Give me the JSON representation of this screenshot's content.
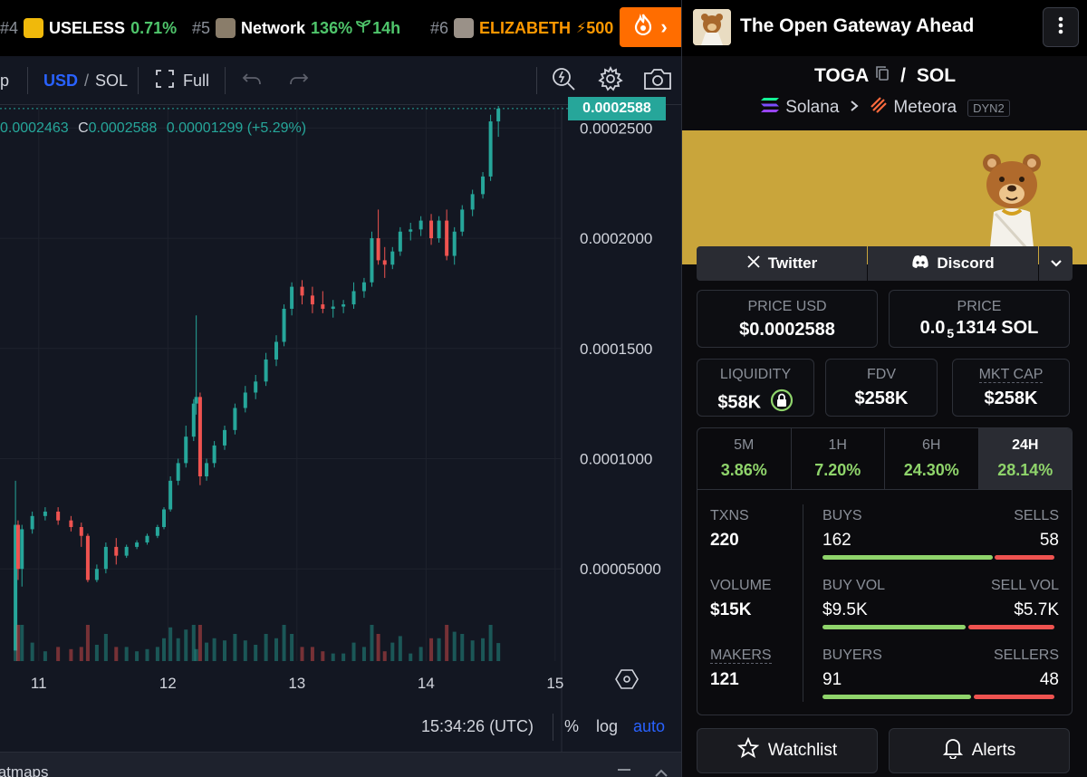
{
  "ticker": {
    "items": [
      {
        "rank": "#4",
        "name": "USELESS",
        "change": "0.71%",
        "age": "",
        "avatar_color": "#f0b90b"
      },
      {
        "rank": "#5",
        "name": "Network",
        "change": "136%",
        "age": "14h",
        "avatar_color": "#8a7d6a"
      },
      {
        "rank": "#6",
        "name": "ELIZABETH",
        "change": "",
        "age": "500",
        "avatar_color": "#9a9188"
      }
    ],
    "fire_button_icon": "flame-icon",
    "fire_arrow": "›"
  },
  "toolbar": {
    "interval_partial": "p",
    "currency_usd": "USD",
    "currency_sep": "/",
    "currency_sol": "SOL",
    "full_label": "Full"
  },
  "chart": {
    "legend": {
      "open_partial": "0.0002463",
      "close_label": "C",
      "close_value": "0.0002588",
      "change": "0.00001299 (+5.29%)"
    },
    "current_price_tag": "0.0002588",
    "time_readout": "15:34:26 (UTC)",
    "percent_label": "%",
    "log_label": "log",
    "auto_label": "auto",
    "heatmaps_label": "Heatmaps"
  },
  "chart_data": {
    "type": "candlestick",
    "x_tick_labels": [
      "11",
      "12",
      "13",
      "14",
      "15"
    ],
    "y_tick_labels": [
      "0.0002500",
      "0.0002000",
      "0.0001500",
      "0.0001000",
      "0.00005000"
    ],
    "y_ticks": [
      0.00025,
      0.0002,
      0.00015,
      0.0001,
      5e-05
    ],
    "ylim": [
      8.2e-06,
      0.00026
    ],
    "xlim": [
      10.7,
      15.05
    ],
    "last_price": 0.0002588,
    "up_color": "#26a69a",
    "down_color": "#ef5350",
    "candles": [
      {
        "t": 10.82,
        "o": 1.3e-05,
        "h": 9e-05,
        "l": 1.3e-05,
        "c": 7e-05
      },
      {
        "t": 10.84,
        "o": 7e-05,
        "h": 7.2e-05,
        "l": 4.5e-05,
        "c": 5e-05
      },
      {
        "t": 10.87,
        "o": 5e-05,
        "h": 7e-05,
        "l": 4.2e-05,
        "c": 6.8e-05
      },
      {
        "t": 10.95,
        "o": 6.8e-05,
        "h": 7.6e-05,
        "l": 6.6e-05,
        "c": 7.4e-05
      },
      {
        "t": 11.05,
        "o": 7.4e-05,
        "h": 7.8e-05,
        "l": 7.2e-05,
        "c": 7.6e-05
      },
      {
        "t": 11.15,
        "o": 7.6e-05,
        "h": 7.8e-05,
        "l": 7e-05,
        "c": 7.2e-05
      },
      {
        "t": 11.25,
        "o": 7.2e-05,
        "h": 7.4e-05,
        "l": 6.7e-05,
        "c": 6.9e-05
      },
      {
        "t": 11.33,
        "o": 6.9e-05,
        "h": 7.1e-05,
        "l": 6e-05,
        "c": 6.5e-05
      },
      {
        "t": 11.38,
        "o": 6.5e-05,
        "h": 6.6e-05,
        "l": 4.4e-05,
        "c": 4.5e-05
      },
      {
        "t": 11.45,
        "o": 4.5e-05,
        "h": 5.2e-05,
        "l": 4.4e-05,
        "c": 5e-05
      },
      {
        "t": 11.52,
        "o": 5e-05,
        "h": 6.2e-05,
        "l": 4.8e-05,
        "c": 6e-05
      },
      {
        "t": 11.6,
        "o": 6e-05,
        "h": 6.4e-05,
        "l": 5.2e-05,
        "c": 5.6e-05
      },
      {
        "t": 11.68,
        "o": 5.6e-05,
        "h": 6.1e-05,
        "l": 5.5e-05,
        "c": 6e-05
      },
      {
        "t": 11.76,
        "o": 6e-05,
        "h": 6.3e-05,
        "l": 5.9e-05,
        "c": 6.2e-05
      },
      {
        "t": 11.84,
        "o": 6.2e-05,
        "h": 6.6e-05,
        "l": 6.1e-05,
        "c": 6.5e-05
      },
      {
        "t": 11.92,
        "o": 6.5e-05,
        "h": 7e-05,
        "l": 6.4e-05,
        "c": 6.9e-05
      },
      {
        "t": 11.97,
        "o": 6.9e-05,
        "h": 7.8e-05,
        "l": 6.8e-05,
        "c": 7.7e-05
      },
      {
        "t": 12.02,
        "o": 7.7e-05,
        "h": 9.2e-05,
        "l": 7.6e-05,
        "c": 9e-05
      },
      {
        "t": 12.08,
        "o": 9e-05,
        "h": 0.0001,
        "l": 8.8e-05,
        "c": 9.8e-05
      },
      {
        "t": 12.14,
        "o": 9.8e-05,
        "h": 0.000115,
        "l": 9.6e-05,
        "c": 0.00011
      },
      {
        "t": 12.2,
        "o": 0.00011,
        "h": 0.000127,
        "l": 0.000108,
        "c": 0.000125
      },
      {
        "t": 12.22,
        "o": 0.000125,
        "h": 0.000165,
        "l": 0.00012,
        "c": 0.000128
      },
      {
        "t": 12.25,
        "o": 0.000128,
        "h": 0.00013,
        "l": 8.8e-05,
        "c": 9.2e-05
      },
      {
        "t": 12.3,
        "o": 9.2e-05,
        "h": 0.0001,
        "l": 9e-05,
        "c": 9.8e-05
      },
      {
        "t": 12.36,
        "o": 9.8e-05,
        "h": 0.000108,
        "l": 9.6e-05,
        "c": 0.000106
      },
      {
        "t": 12.44,
        "o": 0.000106,
        "h": 0.000115,
        "l": 0.000104,
        "c": 0.000113
      },
      {
        "t": 12.52,
        "o": 0.000113,
        "h": 0.000125,
        "l": 0.000111,
        "c": 0.000123
      },
      {
        "t": 12.6,
        "o": 0.000123,
        "h": 0.000133,
        "l": 0.000121,
        "c": 0.00013
      },
      {
        "t": 12.68,
        "o": 0.00013,
        "h": 0.000138,
        "l": 0.000127,
        "c": 0.000135
      },
      {
        "t": 12.76,
        "o": 0.000135,
        "h": 0.000148,
        "l": 0.000133,
        "c": 0.000145
      },
      {
        "t": 12.84,
        "o": 0.000145,
        "h": 0.000156,
        "l": 0.000142,
        "c": 0.000153
      },
      {
        "t": 12.9,
        "o": 0.000153,
        "h": 0.00017,
        "l": 0.000151,
        "c": 0.000168
      },
      {
        "t": 12.96,
        "o": 0.000168,
        "h": 0.00018,
        "l": 0.000165,
        "c": 0.000178
      },
      {
        "t": 13.04,
        "o": 0.000178,
        "h": 0.000181,
        "l": 0.00017,
        "c": 0.000174
      },
      {
        "t": 13.12,
        "o": 0.000174,
        "h": 0.000178,
        "l": 0.000166,
        "c": 0.00017
      },
      {
        "t": 13.2,
        "o": 0.00017,
        "h": 0.000176,
        "l": 0.000166,
        "c": 0.000168
      },
      {
        "t": 13.28,
        "o": 0.000168,
        "h": 0.000172,
        "l": 0.000164,
        "c": 0.000169
      },
      {
        "t": 13.36,
        "o": 0.000169,
        "h": 0.000172,
        "l": 0.000166,
        "c": 0.00017
      },
      {
        "t": 13.44,
        "o": 0.00017,
        "h": 0.00018,
        "l": 0.000168,
        "c": 0.000176
      },
      {
        "t": 13.52,
        "o": 0.000176,
        "h": 0.000182,
        "l": 0.000173,
        "c": 0.00018
      },
      {
        "t": 13.58,
        "o": 0.00018,
        "h": 0.000203,
        "l": 0.000178,
        "c": 0.0002
      },
      {
        "t": 13.63,
        "o": 0.0002,
        "h": 0.000213,
        "l": 0.000188,
        "c": 0.00019
      },
      {
        "t": 13.68,
        "o": 0.00019,
        "h": 0.000196,
        "l": 0.000182,
        "c": 0.000188
      },
      {
        "t": 13.74,
        "o": 0.000188,
        "h": 0.000196,
        "l": 0.000186,
        "c": 0.000194
      },
      {
        "t": 13.8,
        "o": 0.000194,
        "h": 0.000205,
        "l": 0.000192,
        "c": 0.000203
      },
      {
        "t": 13.88,
        "o": 0.000203,
        "h": 0.000207,
        "l": 0.000199,
        "c": 0.000204
      },
      {
        "t": 13.96,
        "o": 0.000204,
        "h": 0.00021,
        "l": 0.000201,
        "c": 0.000208
      },
      {
        "t": 14.04,
        "o": 0.000208,
        "h": 0.000211,
        "l": 0.000197,
        "c": 0.0002
      },
      {
        "t": 14.1,
        "o": 0.0002,
        "h": 0.00021,
        "l": 0.000198,
        "c": 0.000208
      },
      {
        "t": 14.16,
        "o": 0.000208,
        "h": 0.000213,
        "l": 0.00019,
        "c": 0.000192
      },
      {
        "t": 14.22,
        "o": 0.000192,
        "h": 0.000205,
        "l": 0.000188,
        "c": 0.000203
      },
      {
        "t": 14.28,
        "o": 0.000203,
        "h": 0.000215,
        "l": 0.000201,
        "c": 0.000213
      },
      {
        "t": 14.36,
        "o": 0.000213,
        "h": 0.000222,
        "l": 0.00021,
        "c": 0.00022
      },
      {
        "t": 14.44,
        "o": 0.00022,
        "h": 0.00023,
        "l": 0.000218,
        "c": 0.000228
      },
      {
        "t": 14.5,
        "o": 0.000228,
        "h": 0.000256,
        "l": 0.000226,
        "c": 0.000253
      },
      {
        "t": 14.56,
        "o": 0.000253,
        "h": 0.00026,
        "l": 0.000246,
        "c": 0.0002588
      }
    ]
  },
  "panel": {
    "token_name": "The Open Gateway Ahead",
    "pair_base": "TOGA",
    "pair_sep": "/",
    "pair_quote": "SOL",
    "chain": "Solana",
    "dex": "Meteora",
    "dex_tag": "DYN2",
    "socials": {
      "twitter": "Twitter",
      "discord": "Discord"
    },
    "price_usd": {
      "label": "PRICE USD",
      "value": "$0.0002588"
    },
    "price_native": {
      "label": "PRICE",
      "prefix": "0.0",
      "sub": "5",
      "value": "1314 SOL"
    },
    "liquidity": {
      "label": "LIQUIDITY",
      "value": "$58K"
    },
    "fdv": {
      "label": "FDV",
      "value": "$258K"
    },
    "mkt_cap": {
      "label": "MKT CAP",
      "value": "$258K"
    },
    "timeframes": [
      {
        "label": "5M",
        "value": "3.86%"
      },
      {
        "label": "1H",
        "value": "7.20%"
      },
      {
        "label": "6H",
        "value": "24.30%"
      },
      {
        "label": "24H",
        "value": "28.14%"
      }
    ],
    "stats": {
      "txns": {
        "label": "TXNS",
        "value": "220"
      },
      "buys": {
        "label": "BUYS",
        "value": "162"
      },
      "sells": {
        "label": "SELLS",
        "value": "58"
      },
      "volume": {
        "label": "VOLUME",
        "value": "$15K"
      },
      "buy_vol": {
        "label": "BUY VOL",
        "value": "$9.5K"
      },
      "sell_vol": {
        "label": "SELL VOL",
        "value": "$5.7K"
      },
      "makers": {
        "label": "MAKERS",
        "value": "121"
      },
      "buyers": {
        "label": "BUYERS",
        "value": "91"
      },
      "sellers": {
        "label": "SELLERS",
        "value": "48"
      }
    },
    "watchlist": "Watchlist",
    "alerts": "Alerts"
  }
}
